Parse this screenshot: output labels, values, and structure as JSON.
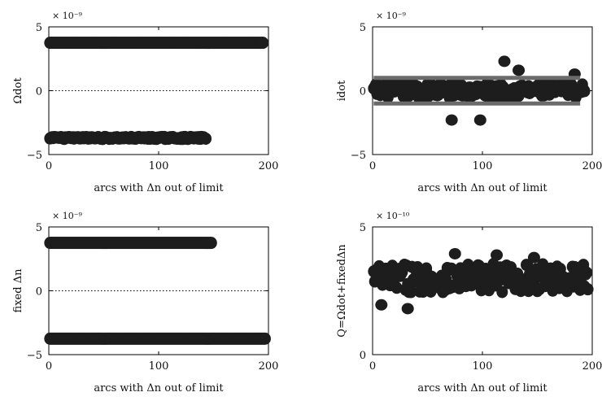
{
  "chart_data": [
    {
      "type": "scatter",
      "ylabel": "Ωdot",
      "xlabel": "arcs with Δn out of limit",
      "y_exponent": "× 10⁻⁹",
      "xlim": [
        0,
        200
      ],
      "ylim": [
        -5,
        5
      ],
      "xticks": [
        "0",
        "100",
        "200"
      ],
      "yticks": [
        "5",
        "0",
        "−5"
      ],
      "zero_line": true,
      "series": [
        {
          "x_start": 1,
          "x_end": 195,
          "y": 3.75,
          "spread": 0.0
        },
        {
          "x_start": 1,
          "x_end": 143,
          "y": -3.7,
          "spread": 0.08
        }
      ]
    },
    {
      "type": "scatter",
      "ylabel": "idot",
      "xlabel": "arcs with Δn out of limit",
      "y_exponent": "× 10⁻⁹",
      "xlim": [
        0,
        200
      ],
      "ylim": [
        -5,
        5
      ],
      "xticks": [
        "0",
        "100",
        "200"
      ],
      "yticks": [
        "5",
        "0",
        "−5"
      ],
      "bands": [
        1.0,
        -1.0
      ],
      "series": [
        {
          "x_start": 1,
          "x_end": 193,
          "y": 0.0,
          "spread": 0.55
        }
      ],
      "outliers": [
        {
          "x": 72,
          "y": -2.3
        },
        {
          "x": 98,
          "y": -2.3
        },
        {
          "x": 120,
          "y": 2.3
        },
        {
          "x": 133,
          "y": 1.6
        },
        {
          "x": 184,
          "y": 1.3
        }
      ]
    },
    {
      "type": "scatter",
      "ylabel": "fixed Δn",
      "xlabel": "arcs with Δn out of limit",
      "y_exponent": "× 10⁻⁹",
      "xlim": [
        0,
        200
      ],
      "ylim": [
        -5,
        5
      ],
      "xticks": [
        "0",
        "100",
        "200"
      ],
      "yticks": [
        "5",
        "0",
        "−5"
      ],
      "zero_line": true,
      "series": [
        {
          "x_start": 1,
          "x_end": 148,
          "y": 3.75,
          "spread": 0.0
        },
        {
          "x_start": 1,
          "x_end": 197,
          "y": -3.75,
          "spread": 0.0
        }
      ]
    },
    {
      "type": "scatter",
      "ylabel": "Q=Ωdot+fixedΔn",
      "xlabel": "arcs with Δn out of limit",
      "y_exponent": "× 10⁻¹⁰",
      "xlim": [
        0,
        200
      ],
      "ylim": [
        0,
        5
      ],
      "xticks": [
        "0",
        "100",
        "200"
      ],
      "yticks": [
        "5",
        "0"
      ],
      "series": [
        {
          "x_start": 1,
          "x_end": 196,
          "y": 3.0,
          "spread": 0.55
        }
      ],
      "outliers": [
        {
          "x": 8,
          "y": 1.95
        },
        {
          "x": 32,
          "y": 1.8
        },
        {
          "x": 75,
          "y": 3.95
        },
        {
          "x": 113,
          "y": 3.9
        },
        {
          "x": 147,
          "y": 3.8
        }
      ]
    }
  ]
}
